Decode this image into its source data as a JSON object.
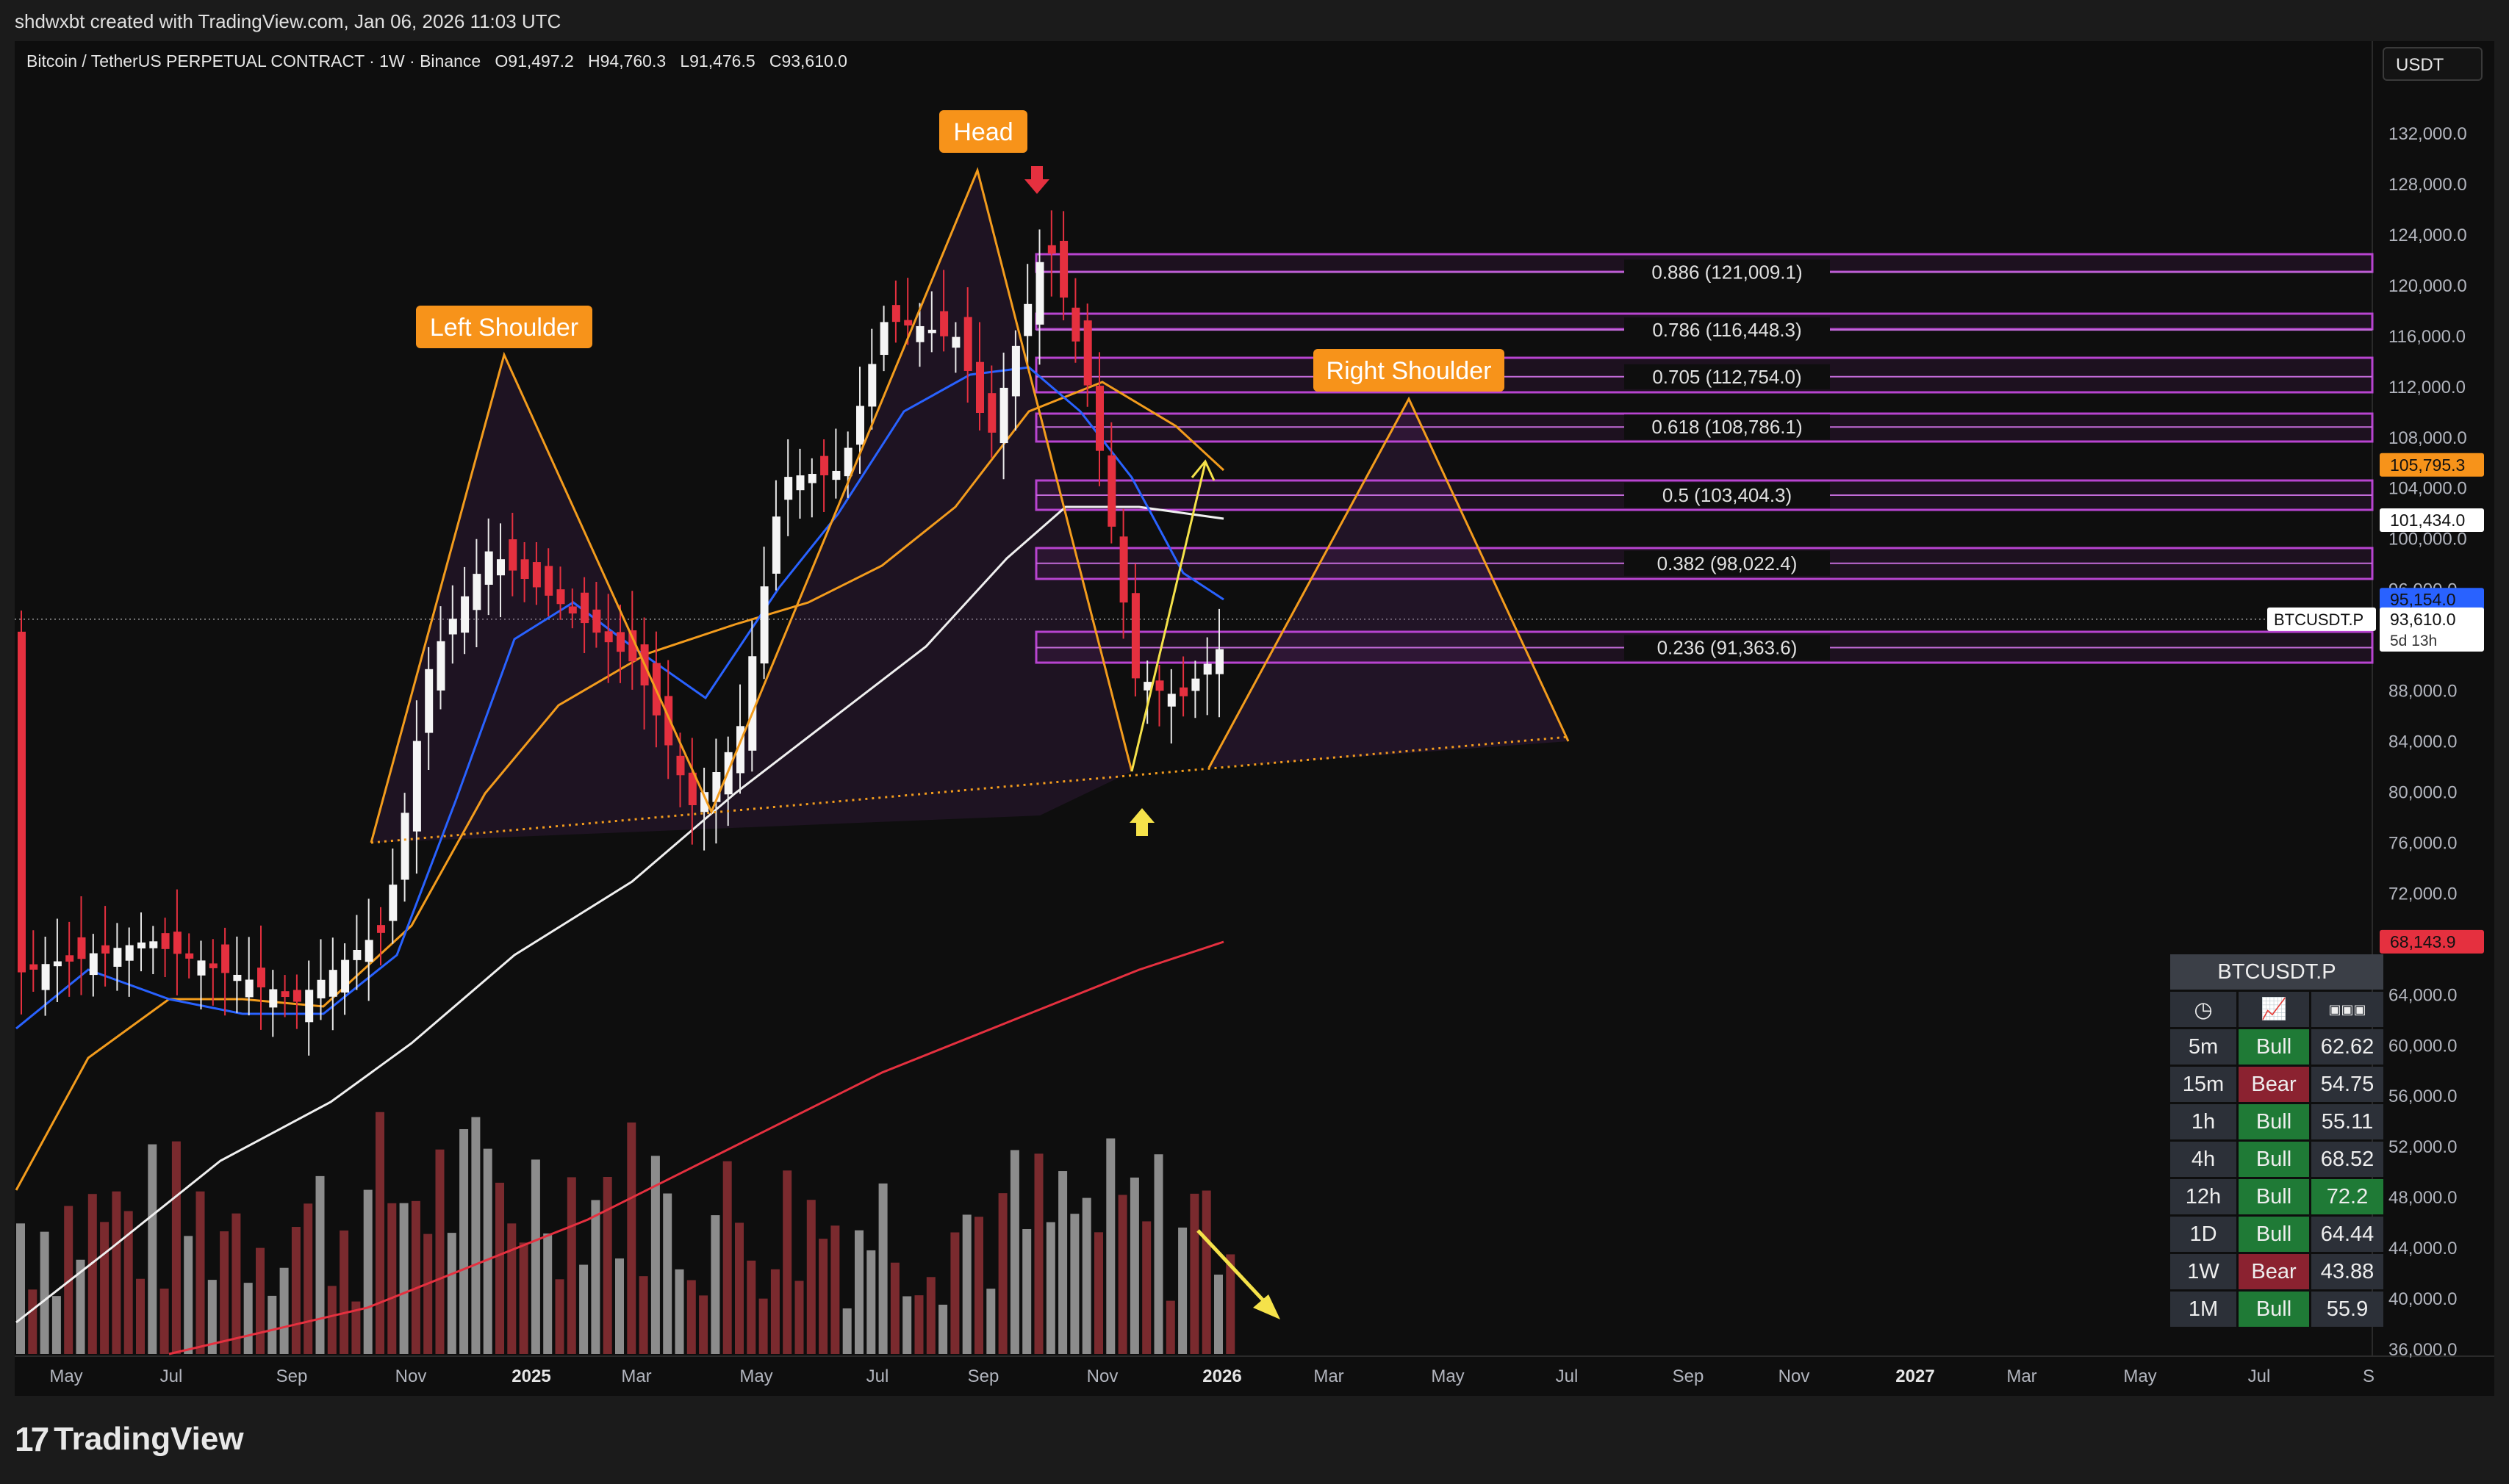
{
  "header": {
    "credit": "shdwxbt created with TradingView.com, Jan 06, 2026 11:03 UTC"
  },
  "legend": {
    "symbol": "Bitcoin / TetherUS PERPETUAL CONTRACT · 1W · Binance",
    "o_label": "O",
    "o": "91,497.2",
    "h_label": "H",
    "h": "94,760.3",
    "l_label": "L",
    "l": "91,476.5",
    "c_label": "C",
    "c": "93,610.0"
  },
  "unit": "USDT",
  "brand": "TradingView",
  "chart_data": {
    "type": "candlestick",
    "timeframe": "1W",
    "ylim": [
      36000,
      134000
    ],
    "yticks": [
      132000,
      128000,
      124000,
      120000,
      116000,
      112000,
      108000,
      104000,
      100000,
      96000,
      88000,
      84000,
      80000,
      76000,
      72000,
      64000,
      60000,
      56000,
      52000,
      48000,
      44000,
      40000,
      36000
    ],
    "xticks": [
      "May",
      "Jul",
      "Sep",
      "Nov",
      "2025",
      "Mar",
      "May",
      "Jul",
      "Sep",
      "Nov",
      "2026",
      "Mar",
      "May",
      "Jul",
      "Sep",
      "Nov",
      "2027",
      "Mar",
      "May",
      "Jul",
      "S"
    ],
    "bold_xticks": [
      "2025",
      "2026",
      "2027"
    ],
    "fib_levels": [
      {
        "label": "0.886 (121,009.1)",
        "value": 121009.1
      },
      {
        "label": "0.786 (116,448.3)",
        "value": 116448.3
      },
      {
        "label": "0.705 (112,754.0)",
        "value": 112754.0
      },
      {
        "label": "0.618 (108,786.1)",
        "value": 108786.1
      },
      {
        "label": "0.5 (103,404.3)",
        "value": 103404.3
      },
      {
        "label": "0.382 (98,022.4)",
        "value": 98022.4
      },
      {
        "label": "0.236 (91,363.6)",
        "value": 91363.6
      }
    ],
    "annotations": [
      "Left Shoulder",
      "Head",
      "Right Shoulder"
    ],
    "price_tags": [
      {
        "value": 105795.3,
        "label": "105,795.3",
        "color": "#f7931a"
      },
      {
        "value": 101434.0,
        "label": "101,434.0",
        "color": "#ffffff"
      },
      {
        "value": 95154.0,
        "label": "95,154.0",
        "color": "#2962ff"
      },
      {
        "value": 93610.0,
        "label": "93,610.0",
        "color": "#ffffff",
        "sub": "5d 13h",
        "symbol": "BTCUSDT.P"
      },
      {
        "value": 68143.9,
        "label": "68,143.9",
        "color": "#e5303f"
      }
    ],
    "moving_averages": [
      "blue",
      "orange",
      "white",
      "red"
    ]
  },
  "rsi_table": {
    "title": "BTCUSDT.P",
    "icons": [
      "clock-icon",
      "chart-icon",
      "rsi-icon"
    ],
    "rows": [
      {
        "tf": "5m",
        "trend": "Bull",
        "rsi": "62.62"
      },
      {
        "tf": "15m",
        "trend": "Bear",
        "rsi": "54.75"
      },
      {
        "tf": "1h",
        "trend": "Bull",
        "rsi": "55.11"
      },
      {
        "tf": "4h",
        "trend": "Bull",
        "rsi": "68.52"
      },
      {
        "tf": "12h",
        "trend": "Bull",
        "rsi": "72.2"
      },
      {
        "tf": "1D",
        "trend": "Bull",
        "rsi": "64.44"
      },
      {
        "tf": "1W",
        "trend": "Bear",
        "rsi": "43.88"
      },
      {
        "tf": "1M",
        "trend": "Bull",
        "rsi": "55.9"
      }
    ]
  }
}
